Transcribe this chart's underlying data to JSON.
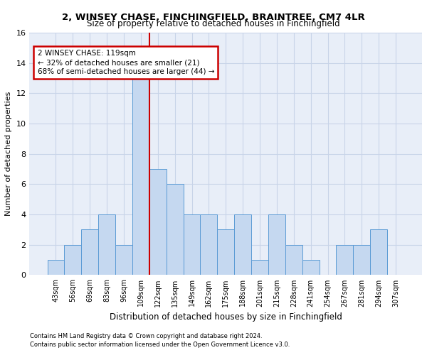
{
  "title1": "2, WINSEY CHASE, FINCHINGFIELD, BRAINTREE, CM7 4LR",
  "title2": "Size of property relative to detached houses in Finchingfield",
  "xlabel": "Distribution of detached houses by size in Finchingfield",
  "ylabel": "Number of detached properties",
  "footnote1": "Contains HM Land Registry data © Crown copyright and database right 2024.",
  "footnote2": "Contains public sector information licensed under the Open Government Licence v3.0.",
  "annotation_line1": "2 WINSEY CHASE: 119sqm",
  "annotation_line2": "← 32% of detached houses are smaller (21)",
  "annotation_line3": "68% of semi-detached houses are larger (44) →",
  "bar_color": "#c5d8f0",
  "bar_edge_color": "#5b9bd5",
  "vline_color": "#cc0000",
  "annotation_box_edgecolor": "#cc0000",
  "grid_color": "#c8d4e8",
  "background_color": "#e8eef8",
  "categories": [
    "43sqm",
    "56sqm",
    "69sqm",
    "83sqm",
    "96sqm",
    "109sqm",
    "122sqm",
    "135sqm",
    "149sqm",
    "162sqm",
    "175sqm",
    "188sqm",
    "201sqm",
    "215sqm",
    "228sqm",
    "241sqm",
    "254sqm",
    "267sqm",
    "281sqm",
    "294sqm",
    "307sqm"
  ],
  "values": [
    1,
    2,
    3,
    4,
    2,
    13,
    7,
    6,
    4,
    4,
    3,
    4,
    1,
    4,
    2,
    1,
    0,
    2,
    2,
    3,
    0
  ],
  "vline_x_index": 5.5,
  "ylim": [
    0,
    16
  ],
  "yticks": [
    0,
    2,
    4,
    6,
    8,
    10,
    12,
    14,
    16
  ]
}
